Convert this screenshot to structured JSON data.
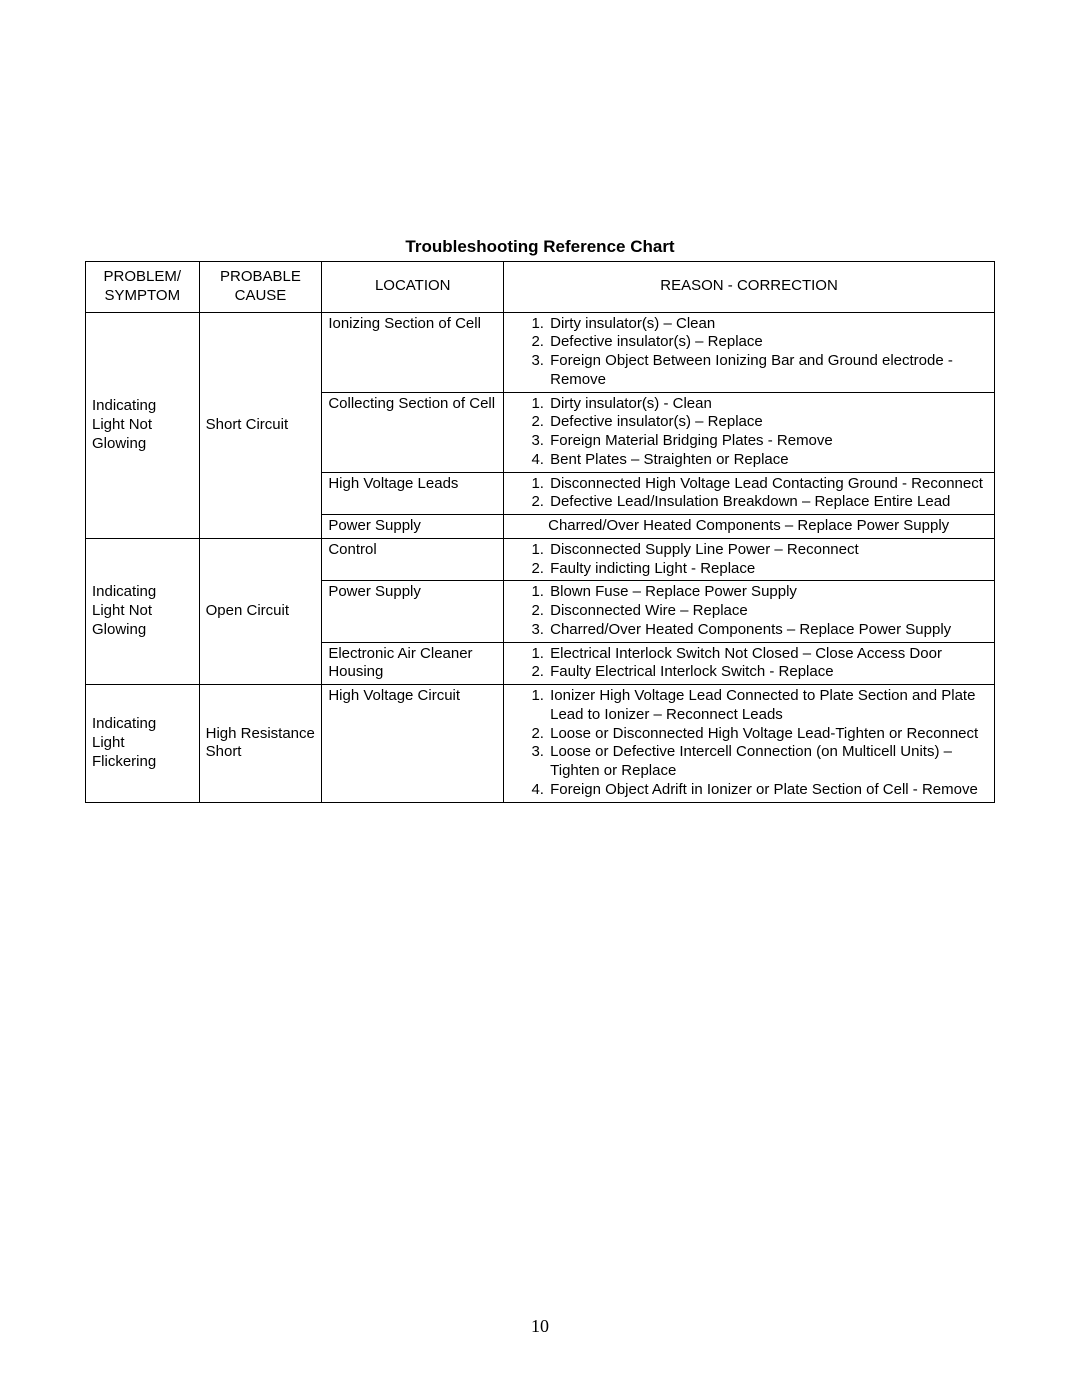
{
  "title": "Troubleshooting Reference Chart",
  "page_number": "10",
  "columns": {
    "problem": "PROBLEM/ SYMPTOM",
    "cause": "PROBABLE CAUSE",
    "location": "LOCATION",
    "reason": "REASON - CORRECTION"
  },
  "groups": [
    {
      "problem": "Indicating Light Not Glowing",
      "cause": "Short Circuit",
      "rows": [
        {
          "location": "Ionizing Section of Cell",
          "reasons": [
            "Dirty insulator(s) – Clean",
            "Defective insulator(s) – Replace",
            "Foreign Object Between Ionizing Bar and Ground electrode - Remove"
          ]
        },
        {
          "location": "Collecting Section of Cell",
          "reasons": [
            "Dirty insulator(s) - Clean",
            "Defective insulator(s) – Replace",
            "Foreign Material Bridging Plates - Remove",
            "Bent Plates – Straighten or Replace"
          ]
        },
        {
          "location": "High Voltage Leads",
          "reasons": [
            "Disconnected High Voltage Lead Contacting Ground - Reconnect",
            "Defective Lead/Insulation Breakdown – Replace Entire Lead"
          ]
        },
        {
          "location": "Power Supply",
          "single_reason": "Charred/Over Heated Components – Replace Power Supply"
        }
      ]
    },
    {
      "problem": "Indicating Light Not Glowing",
      "cause": "Open Circuit",
      "rows": [
        {
          "location": "Control",
          "reasons": [
            "Disconnected Supply Line Power – Reconnect",
            "Faulty indicting Light - Replace"
          ]
        },
        {
          "location": "Power Supply",
          "reasons": [
            "Blown Fuse – Replace Power Supply",
            "Disconnected Wire – Replace",
            "Charred/Over Heated Components – Replace Power Supply"
          ]
        },
        {
          "location": "Electronic Air Cleaner Housing",
          "reasons": [
            "Electrical Interlock Switch Not Closed – Close Access Door",
            "Faulty Electrical Interlock Switch - Replace"
          ]
        }
      ]
    },
    {
      "problem": "Indicating Light Flickering",
      "cause": "High Resistance Short",
      "rows": [
        {
          "location": "High Voltage Circuit",
          "reasons": [
            "Ionizer High Voltage Lead Connected to Plate Section and Plate Lead to Ionizer – Reconnect Leads",
            "Loose or Disconnected High Voltage Lead-Tighten or Reconnect",
            "Loose or Defective Intercell Connection (on Multicell Units) – Tighten or Replace",
            "Foreign Object Adrift in Ionizer or Plate Section of Cell - Remove"
          ],
          "pad_bottom": true
        }
      ]
    }
  ]
}
